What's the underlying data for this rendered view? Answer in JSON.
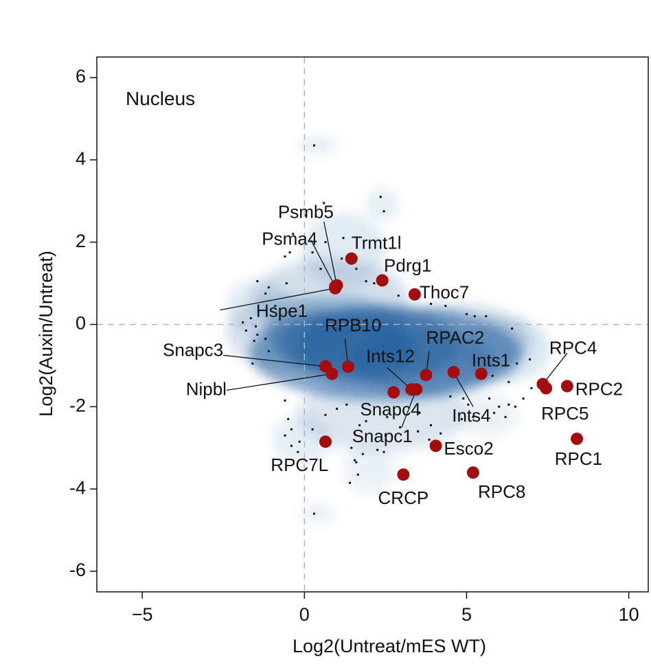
{
  "chart_data": {
    "type": "scatter",
    "title": "",
    "panel_label": "Nucleus",
    "xlabel": "Log2(Untreat/mES WT)",
    "ylabel": "Log2(Auxin/Untreat)",
    "xlim": [
      -6.4,
      10.6
    ],
    "ylim": [
      -6.5,
      6.5
    ],
    "xticks": [
      -5,
      0,
      5,
      10
    ],
    "xtick_labels": [
      "−5",
      "0",
      "5",
      "10"
    ],
    "yticks": [
      6,
      4,
      2,
      0,
      -2,
      -4,
      -6
    ],
    "ytick_labels": [
      "6",
      "4",
      "2",
      "0",
      "-2",
      "-4",
      "-6"
    ],
    "reference_lines": {
      "x": 0,
      "y": 0
    },
    "grid": false,
    "colors": {
      "density": "#1f5d9c",
      "highlight": "#a30d0d",
      "background_points": "#111111",
      "reference_line": "#b5b5b5"
    },
    "highlighted": [
      {
        "label": "Psmb5",
        "x": 1.0,
        "y": 0.95
      },
      {
        "label": "Psma4",
        "x": 0.95,
        "y": 0.92
      },
      {
        "label": "Hspe1",
        "x": 0.95,
        "y": 0.88
      },
      {
        "label": "Trmt1l",
        "x": 1.45,
        "y": 1.6
      },
      {
        "label": "Pdrg1",
        "x": 2.4,
        "y": 1.07
      },
      {
        "label": "Thoc7",
        "x": 3.4,
        "y": 0.73
      },
      {
        "label": "RPB10",
        "x": 1.35,
        "y": -1.03
      },
      {
        "label": "Snapc3",
        "x": 0.65,
        "y": -1.02
      },
      {
        "label": "Nipbl",
        "x": 0.85,
        "y": -1.2
      },
      {
        "label": "RPAC2",
        "x": 3.75,
        "y": -1.23
      },
      {
        "label": "Ints12",
        "x": 3.3,
        "y": -1.58
      },
      {
        "label": "Snapc4",
        "x": 2.75,
        "y": -1.65
      },
      {
        "label": "Snapc1",
        "x": 3.45,
        "y": -1.58
      },
      {
        "label": "Ints4",
        "x": 4.6,
        "y": -1.16
      },
      {
        "label": "Ints1",
        "x": 5.45,
        "y": -1.2
      },
      {
        "label": "RPC4",
        "x": 7.35,
        "y": -1.45
      },
      {
        "label": "RPC5",
        "x": 7.45,
        "y": -1.55
      },
      {
        "label": "RPC2",
        "x": 8.1,
        "y": -1.5
      },
      {
        "label": "RPC1",
        "x": 8.4,
        "y": -2.78
      },
      {
        "label": "RPC7L",
        "x": 0.65,
        "y": -2.85
      },
      {
        "label": "Esco2",
        "x": 4.05,
        "y": -2.95
      },
      {
        "label": "CRCP",
        "x": 3.05,
        "y": -3.65
      },
      {
        "label": "RPC8",
        "x": 5.2,
        "y": -3.6
      }
    ],
    "background_points": [
      [
        0.3,
        4.35
      ],
      [
        0.6,
        2.95
      ],
      [
        2.35,
        3.1
      ],
      [
        2.45,
        2.75
      ],
      [
        0.05,
        2.65
      ],
      [
        1.2,
        2.1
      ],
      [
        0.65,
        2.0
      ],
      [
        -0.35,
        2.2
      ],
      [
        -0.45,
        1.75
      ],
      [
        -0.6,
        1.65
      ],
      [
        0.25,
        1.75
      ],
      [
        1.15,
        1.6
      ],
      [
        1.6,
        1.35
      ],
      [
        2.15,
        1.0
      ],
      [
        1.9,
        1.05
      ],
      [
        -1.45,
        1.05
      ],
      [
        -1.1,
        0.9
      ],
      [
        -1.2,
        0.75
      ],
      [
        -0.55,
        1.0
      ],
      [
        0.5,
        1.35
      ],
      [
        2.9,
        0.7
      ],
      [
        3.9,
        0.5
      ],
      [
        4.35,
        0.45
      ],
      [
        5.0,
        0.25
      ],
      [
        5.25,
        0.2
      ],
      [
        5.6,
        0.2
      ],
      [
        6.4,
        -0.1
      ],
      [
        -1.9,
        0.05
      ],
      [
        -1.65,
        0.15
      ],
      [
        -1.5,
        -0.05
      ],
      [
        -1.8,
        -0.15
      ],
      [
        -1.45,
        -0.25
      ],
      [
        -1.55,
        -0.4
      ],
      [
        -1.2,
        -0.35
      ],
      [
        -1.1,
        -0.65
      ],
      [
        -1.6,
        -0.95
      ],
      [
        -0.9,
        0.45
      ],
      [
        6.55,
        -0.95
      ],
      [
        6.95,
        -0.85
      ],
      [
        6.3,
        -1.4
      ],
      [
        5.8,
        -1.25
      ],
      [
        6.75,
        -1.8
      ],
      [
        6.3,
        -1.95
      ],
      [
        6.0,
        -2.0
      ],
      [
        5.7,
        -1.8
      ],
      [
        5.85,
        -2.15
      ],
      [
        6.5,
        -2.0
      ],
      [
        4.5,
        -1.75
      ],
      [
        4.9,
        -1.8
      ],
      [
        5.05,
        -1.95
      ],
      [
        4.85,
        -2.3
      ],
      [
        5.2,
        -2.25
      ],
      [
        3.55,
        -2.15
      ],
      [
        3.9,
        -2.45
      ],
      [
        3.5,
        -2.6
      ],
      [
        2.55,
        -2.25
      ],
      [
        2.95,
        -2.5
      ],
      [
        2.5,
        -2.7
      ],
      [
        2.25,
        -3.05
      ],
      [
        2.45,
        -3.1
      ],
      [
        1.9,
        -2.35
      ],
      [
        1.7,
        -2.45
      ],
      [
        1.55,
        -2.65
      ],
      [
        3.85,
        -2.8
      ],
      [
        4.2,
        -2.65
      ],
      [
        -0.6,
        -1.85
      ],
      [
        -0.5,
        -2.3
      ],
      [
        -0.4,
        -2.55
      ],
      [
        -0.6,
        -2.7
      ],
      [
        -0.4,
        -2.95
      ],
      [
        -0.15,
        -2.85
      ],
      [
        -0.2,
        -3.1
      ],
      [
        0.25,
        -2.55
      ],
      [
        1.45,
        -3.0
      ],
      [
        1.8,
        -3.15
      ],
      [
        1.55,
        -3.3
      ],
      [
        1.6,
        -3.35
      ],
      [
        1.65,
        -3.65
      ],
      [
        1.4,
        -3.85
      ],
      [
        6.2,
        -2.25
      ],
      [
        7.0,
        -1.55
      ],
      [
        0.3,
        -4.6
      ],
      [
        0.65,
        -2.2
      ],
      [
        1.0,
        -2.05
      ],
      [
        1.3,
        -1.95
      ]
    ],
    "density_blobs": [
      [
        2.5,
        -0.7,
        4.2,
        1.15,
        0.55
      ],
      [
        2.0,
        -0.5,
        2.8,
        0.9,
        0.45
      ],
      [
        1.6,
        -0.6,
        1.8,
        0.75,
        0.45
      ],
      [
        3.6,
        -0.9,
        2.2,
        0.8,
        0.35
      ],
      [
        1.0,
        -0.2,
        2.2,
        0.9,
        0.3
      ],
      [
        4.6,
        -0.4,
        2.4,
        0.9,
        0.22
      ],
      [
        0.8,
        0.6,
        2.4,
        1.0,
        0.2
      ],
      [
        -0.6,
        -0.2,
        1.8,
        0.9,
        0.18
      ],
      [
        2.4,
        -2.2,
        2.6,
        0.9,
        0.16
      ],
      [
        1.2,
        1.8,
        1.3,
        0.9,
        0.12
      ],
      [
        6.2,
        -0.6,
        1.4,
        0.8,
        0.14
      ],
      [
        -1.4,
        0.4,
        1.0,
        0.7,
        0.12
      ],
      [
        2.4,
        2.9,
        0.5,
        0.4,
        0.1
      ],
      [
        0.4,
        4.35,
        0.6,
        0.2,
        0.1
      ],
      [
        0.4,
        -4.6,
        0.5,
        0.2,
        0.1
      ],
      [
        -0.1,
        -2.8,
        0.9,
        0.6,
        0.1
      ],
      [
        2.0,
        -3.5,
        0.8,
        0.6,
        0.08
      ],
      [
        5.6,
        -2.2,
        1.0,
        0.5,
        0.08
      ]
    ],
    "label_layout": [
      {
        "label": "Psmb5",
        "lx": 0.9,
        "ly": 2.7,
        "anchor": "end",
        "leader": [
          0.6,
          2.5
        ]
      },
      {
        "label": "Psma4",
        "lx": 0.4,
        "ly": 2.05,
        "anchor": "end",
        "leader": [
          0.2,
          2.05
        ]
      },
      {
        "label": "Hspe1",
        "lx": 0.1,
        "ly": 0.3,
        "anchor": "end",
        "leader": [
          -2.6,
          0.35
        ]
      },
      {
        "label": "Trmt1l",
        "lx": 1.45,
        "ly": 1.95,
        "anchor": "start",
        "leader": null
      },
      {
        "label": "Pdrg1",
        "lx": 2.45,
        "ly": 1.4,
        "anchor": "start",
        "leader": null
      },
      {
        "label": "Thoc7",
        "lx": 3.55,
        "ly": 0.75,
        "anchor": "start",
        "leader": null
      },
      {
        "label": "RPB10",
        "lx": 1.5,
        "ly": -0.05,
        "anchor": "middle",
        "leader": [
          1.25,
          -0.35
        ]
      },
      {
        "label": "Snapc3",
        "lx": -2.5,
        "ly": -0.65,
        "anchor": "end",
        "leader": [
          -2.5,
          -0.75
        ]
      },
      {
        "label": "Nipbl",
        "lx": -2.4,
        "ly": -1.6,
        "anchor": "end",
        "leader": [
          -2.4,
          -1.6
        ]
      },
      {
        "label": "RPAC2",
        "lx": 3.75,
        "ly": -0.35,
        "anchor": "start",
        "leader": [
          3.85,
          -0.65
        ]
      },
      {
        "label": "Ints12",
        "lx": 3.4,
        "ly": -0.8,
        "anchor": "end",
        "leader": [
          2.55,
          -1.05
        ]
      },
      {
        "label": "Snapc4",
        "lx": 2.65,
        "ly": -2.1,
        "anchor": "middle",
        "leader": null
      },
      {
        "label": "Snapc1",
        "lx": 2.4,
        "ly": -2.75,
        "anchor": "middle",
        "leader": [
          3.0,
          -2.5
        ]
      },
      {
        "label": "Ints4",
        "lx": 4.55,
        "ly": -2.25,
        "anchor": "start",
        "leader": [
          5.2,
          -2.0
        ]
      },
      {
        "label": "Ints1",
        "lx": 6.35,
        "ly": -0.9,
        "anchor": "end",
        "leader": null
      },
      {
        "label": "RPC4",
        "lx": 7.55,
        "ly": -0.6,
        "anchor": "start",
        "leader": [
          8.1,
          -0.7
        ]
      },
      {
        "label": "RPC5",
        "lx": 7.3,
        "ly": -2.2,
        "anchor": "start",
        "leader": null
      },
      {
        "label": "RPC2",
        "lx": 8.35,
        "ly": -1.6,
        "anchor": "start",
        "leader": null
      },
      {
        "label": "RPC1",
        "lx": 8.45,
        "ly": -3.3,
        "anchor": "middle",
        "leader": null
      },
      {
        "label": "RPC7L",
        "lx": -0.15,
        "ly": -3.45,
        "anchor": "middle",
        "leader": null
      },
      {
        "label": "Esco2",
        "lx": 4.3,
        "ly": -3.05,
        "anchor": "start",
        "leader": null
      },
      {
        "label": "CRCP",
        "lx": 3.05,
        "ly": -4.25,
        "anchor": "middle",
        "leader": null
      },
      {
        "label": "RPC8",
        "lx": 5.35,
        "ly": -4.1,
        "anchor": "start",
        "leader": null
      }
    ]
  }
}
